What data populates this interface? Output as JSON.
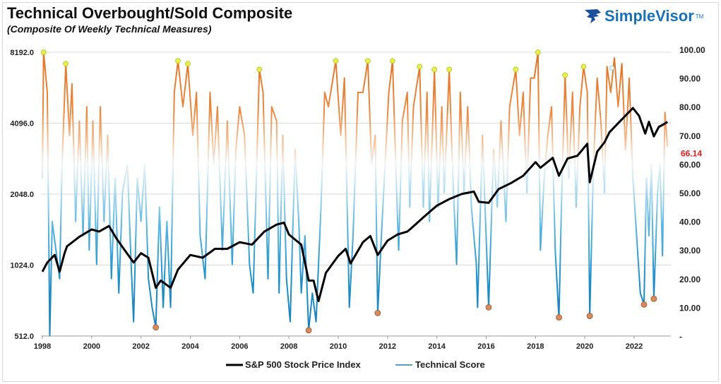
{
  "chart_data": {
    "type": "line",
    "title": "Technical Overbought/Sold Composite",
    "subtitle": "(Composite Of Weekly Technical Measures)",
    "brand": "SimpleVisor",
    "brand_mark": "TM",
    "x_ticks": [
      "1998",
      "2000",
      "2002",
      "2004",
      "2006",
      "2008",
      "2010",
      "2012",
      "2014",
      "2016",
      "2018",
      "2020",
      "2022"
    ],
    "xlim": [
      1998,
      2023.4
    ],
    "y_left": {
      "scale": "log2",
      "ylim": [
        512,
        8192
      ],
      "ticks": [
        "8192.0",
        "4096.0",
        "2048.0",
        "1024.0",
        "512.0"
      ],
      "tick_values": [
        8192,
        4096,
        2048,
        1024,
        512
      ]
    },
    "y_right": {
      "scale": "linear",
      "ylim": [
        0,
        100
      ],
      "ticks": [
        "100.00",
        "90.00",
        "80.00",
        "70.00",
        "60.00",
        "50.00",
        "40.00",
        "30.00",
        "20.00",
        "10.00",
        "-"
      ],
      "tick_values": [
        100,
        90,
        80,
        70,
        60,
        50,
        40,
        30,
        20,
        10,
        0
      ]
    },
    "latest_value_label": "66.14",
    "latest_value_color": "#e02020",
    "grid": true,
    "legend_position": "bottom",
    "colors": {
      "spx": "#000000",
      "overbought": "#e07b2e",
      "neutral": "#eef3f6",
      "oversold": "#1f8fc8",
      "overbought_marker": "#e6f04a",
      "oversold_marker": "#d9895a"
    },
    "series": [
      {
        "name": "S&P 500 Stock Price Index",
        "axis": "left",
        "points": [
          [
            1998.0,
            960
          ],
          [
            1998.2,
            1050
          ],
          [
            1998.5,
            1130
          ],
          [
            1998.7,
            960
          ],
          [
            1998.9,
            1150
          ],
          [
            1999.0,
            1230
          ],
          [
            1999.5,
            1350
          ],
          [
            2000.0,
            1450
          ],
          [
            2000.3,
            1420
          ],
          [
            2000.7,
            1500
          ],
          [
            2001.0,
            1330
          ],
          [
            2001.3,
            1200
          ],
          [
            2001.7,
            1050
          ],
          [
            2002.0,
            1150
          ],
          [
            2002.3,
            1100
          ],
          [
            2002.6,
            820
          ],
          [
            2002.8,
            880
          ],
          [
            2003.2,
            820
          ],
          [
            2003.5,
            980
          ],
          [
            2004.0,
            1130
          ],
          [
            2004.5,
            1100
          ],
          [
            2005.0,
            1200
          ],
          [
            2005.5,
            1200
          ],
          [
            2006.0,
            1280
          ],
          [
            2006.5,
            1250
          ],
          [
            2007.0,
            1420
          ],
          [
            2007.5,
            1520
          ],
          [
            2007.8,
            1550
          ],
          [
            2008.0,
            1380
          ],
          [
            2008.5,
            1250
          ],
          [
            2008.8,
            880
          ],
          [
            2009.0,
            880
          ],
          [
            2009.2,
            720
          ],
          [
            2009.5,
            950
          ],
          [
            2010.0,
            1120
          ],
          [
            2010.3,
            1200
          ],
          [
            2010.5,
            1040
          ],
          [
            2011.0,
            1280
          ],
          [
            2011.3,
            1360
          ],
          [
            2011.6,
            1130
          ],
          [
            2012.0,
            1300
          ],
          [
            2012.4,
            1380
          ],
          [
            2012.8,
            1420
          ],
          [
            2013.0,
            1480
          ],
          [
            2013.5,
            1650
          ],
          [
            2014.0,
            1830
          ],
          [
            2014.5,
            1950
          ],
          [
            2015.0,
            2050
          ],
          [
            2015.5,
            2100
          ],
          [
            2015.7,
            1900
          ],
          [
            2016.1,
            1880
          ],
          [
            2016.5,
            2150
          ],
          [
            2017.0,
            2280
          ],
          [
            2017.5,
            2450
          ],
          [
            2018.0,
            2800
          ],
          [
            2018.2,
            2650
          ],
          [
            2018.7,
            2920
          ],
          [
            2018.95,
            2450
          ],
          [
            2019.3,
            2900
          ],
          [
            2019.7,
            2980
          ],
          [
            2020.1,
            3350
          ],
          [
            2020.2,
            2300
          ],
          [
            2020.5,
            3100
          ],
          [
            2020.8,
            3400
          ],
          [
            2021.0,
            3750
          ],
          [
            2021.5,
            4250
          ],
          [
            2021.95,
            4750
          ],
          [
            2022.2,
            4400
          ],
          [
            2022.45,
            3700
          ],
          [
            2022.6,
            4150
          ],
          [
            2022.8,
            3600
          ],
          [
            2023.0,
            3950
          ],
          [
            2023.2,
            4050
          ],
          [
            2023.35,
            4150
          ]
        ]
      },
      {
        "name": "Technical Score",
        "axis": "right",
        "points": [
          [
            1998.0,
            55
          ],
          [
            1998.05,
            99
          ],
          [
            1998.2,
            85
          ],
          [
            1998.3,
            0
          ],
          [
            1998.4,
            40
          ],
          [
            1998.55,
            30
          ],
          [
            1998.7,
            20
          ],
          [
            1998.8,
            60
          ],
          [
            1998.95,
            95
          ],
          [
            1999.1,
            70
          ],
          [
            1999.2,
            88
          ],
          [
            1999.35,
            40
          ],
          [
            1999.5,
            75
          ],
          [
            1999.65,
            35
          ],
          [
            1999.8,
            80
          ],
          [
            1999.9,
            30
          ],
          [
            2000.05,
            75
          ],
          [
            2000.2,
            25
          ],
          [
            2000.35,
            80
          ],
          [
            2000.5,
            40
          ],
          [
            2000.65,
            70
          ],
          [
            2000.8,
            20
          ],
          [
            2000.95,
            55
          ],
          [
            2001.1,
            15
          ],
          [
            2001.25,
            50
          ],
          [
            2001.45,
            60
          ],
          [
            2001.6,
            25
          ],
          [
            2001.7,
            5
          ],
          [
            2001.85,
            55
          ],
          [
            2002.0,
            40
          ],
          [
            2002.15,
            60
          ],
          [
            2002.3,
            20
          ],
          [
            2002.45,
            10
          ],
          [
            2002.6,
            3
          ],
          [
            2002.75,
            45
          ],
          [
            2002.9,
            10
          ],
          [
            2003.05,
            40
          ],
          [
            2003.2,
            10
          ],
          [
            2003.35,
            85
          ],
          [
            2003.5,
            96
          ],
          [
            2003.7,
            80
          ],
          [
            2003.9,
            95
          ],
          [
            2004.1,
            70
          ],
          [
            2004.25,
            85
          ],
          [
            2004.4,
            35
          ],
          [
            2004.6,
            20
          ],
          [
            2004.8,
            85
          ],
          [
            2004.95,
            60
          ],
          [
            2005.1,
            80
          ],
          [
            2005.3,
            30
          ],
          [
            2005.5,
            75
          ],
          [
            2005.7,
            25
          ],
          [
            2005.85,
            65
          ],
          [
            2006.0,
            80
          ],
          [
            2006.2,
            70
          ],
          [
            2006.4,
            25
          ],
          [
            2006.55,
            15
          ],
          [
            2006.8,
            93
          ],
          [
            2006.95,
            85
          ],
          [
            2007.15,
            20
          ],
          [
            2007.3,
            80
          ],
          [
            2007.5,
            75
          ],
          [
            2007.6,
            15
          ],
          [
            2007.75,
            70
          ],
          [
            2007.9,
            20
          ],
          [
            2008.05,
            5
          ],
          [
            2008.25,
            65
          ],
          [
            2008.4,
            40
          ],
          [
            2008.5,
            15
          ],
          [
            2008.65,
            35
          ],
          [
            2008.8,
            2
          ],
          [
            2008.95,
            15
          ],
          [
            2009.1,
            5
          ],
          [
            2009.3,
            45
          ],
          [
            2009.45,
            85
          ],
          [
            2009.6,
            80
          ],
          [
            2009.9,
            96
          ],
          [
            2010.1,
            70
          ],
          [
            2010.25,
            90
          ],
          [
            2010.45,
            10
          ],
          [
            2010.6,
            35
          ],
          [
            2010.8,
            85
          ],
          [
            2011.0,
            85
          ],
          [
            2011.2,
            96
          ],
          [
            2011.35,
            60
          ],
          [
            2011.5,
            70
          ],
          [
            2011.6,
            8
          ],
          [
            2011.75,
            35
          ],
          [
            2011.9,
            60
          ],
          [
            2012.05,
            85
          ],
          [
            2012.2,
            96
          ],
          [
            2012.35,
            55
          ],
          [
            2012.45,
            30
          ],
          [
            2012.6,
            75
          ],
          [
            2012.8,
            85
          ],
          [
            2012.9,
            45
          ],
          [
            2013.05,
            80
          ],
          [
            2013.3,
            94
          ],
          [
            2013.45,
            45
          ],
          [
            2013.6,
            85
          ],
          [
            2013.7,
            40
          ],
          [
            2013.9,
            93
          ],
          [
            2014.05,
            45
          ],
          [
            2014.2,
            80
          ],
          [
            2014.3,
            50
          ],
          [
            2014.5,
            93
          ],
          [
            2014.65,
            55
          ],
          [
            2014.8,
            25
          ],
          [
            2014.95,
            85
          ],
          [
            2015.1,
            50
          ],
          [
            2015.25,
            80
          ],
          [
            2015.4,
            45
          ],
          [
            2015.6,
            25
          ],
          [
            2015.65,
            10
          ],
          [
            2015.85,
            70
          ],
          [
            2016.1,
            10
          ],
          [
            2016.3,
            65
          ],
          [
            2016.45,
            45
          ],
          [
            2016.6,
            75
          ],
          [
            2016.8,
            40
          ],
          [
            2016.95,
            80
          ],
          [
            2017.2,
            93
          ],
          [
            2017.35,
            70
          ],
          [
            2017.5,
            85
          ],
          [
            2017.65,
            50
          ],
          [
            2017.8,
            90
          ],
          [
            2017.95,
            90
          ],
          [
            2018.1,
            99
          ],
          [
            2018.2,
            30
          ],
          [
            2018.35,
            55
          ],
          [
            2018.5,
            70
          ],
          [
            2018.65,
            80
          ],
          [
            2018.8,
            30
          ],
          [
            2018.95,
            6
          ],
          [
            2019.05,
            45
          ],
          [
            2019.2,
            91
          ],
          [
            2019.35,
            55
          ],
          [
            2019.5,
            85
          ],
          [
            2019.65,
            45
          ],
          [
            2019.8,
            80
          ],
          [
            2019.95,
            94
          ],
          [
            2020.1,
            85
          ],
          [
            2020.2,
            7
          ],
          [
            2020.35,
            60
          ],
          [
            2020.5,
            90
          ],
          [
            2020.65,
            75
          ],
          [
            2020.8,
            50
          ],
          [
            2020.9,
            94
          ],
          [
            2021.05,
            85
          ],
          [
            2021.2,
            97
          ],
          [
            2021.35,
            80
          ],
          [
            2021.5,
            95
          ],
          [
            2021.65,
            65
          ],
          [
            2021.8,
            90
          ],
          [
            2021.95,
            55
          ],
          [
            2022.1,
            35
          ],
          [
            2022.25,
            15
          ],
          [
            2022.4,
            11
          ],
          [
            2022.5,
            55
          ],
          [
            2022.6,
            35
          ],
          [
            2022.7,
            60
          ],
          [
            2022.8,
            13
          ],
          [
            2022.95,
            50
          ],
          [
            2023.05,
            60
          ],
          [
            2023.15,
            28
          ],
          [
            2023.25,
            78
          ],
          [
            2023.35,
            66.14
          ]
        ]
      }
    ],
    "overbought_markers": [
      [
        1998.05,
        99
      ],
      [
        1998.95,
        95
      ],
      [
        2003.5,
        96
      ],
      [
        2003.9,
        95
      ],
      [
        2006.8,
        93
      ],
      [
        2009.9,
        96
      ],
      [
        2011.2,
        96
      ],
      [
        2012.2,
        96
      ],
      [
        2013.3,
        94
      ],
      [
        2013.9,
        93
      ],
      [
        2014.5,
        93
      ],
      [
        2017.2,
        93
      ],
      [
        2018.1,
        99
      ],
      [
        2019.2,
        91
      ],
      [
        2019.95,
        94
      ]
    ],
    "hollow_markers": [
      [
        2021.1,
        93.5
      ]
    ],
    "oversold_markers": [
      [
        2002.6,
        3
      ],
      [
        2008.8,
        2
      ],
      [
        2011.6,
        8
      ],
      [
        2016.1,
        10
      ],
      [
        2018.95,
        6.5
      ],
      [
        2020.2,
        7
      ],
      [
        2022.4,
        11
      ],
      [
        2022.8,
        13
      ]
    ]
  },
  "legend": {
    "spx": "S&P 500 Stock Price Index",
    "score": "Technical Score"
  }
}
